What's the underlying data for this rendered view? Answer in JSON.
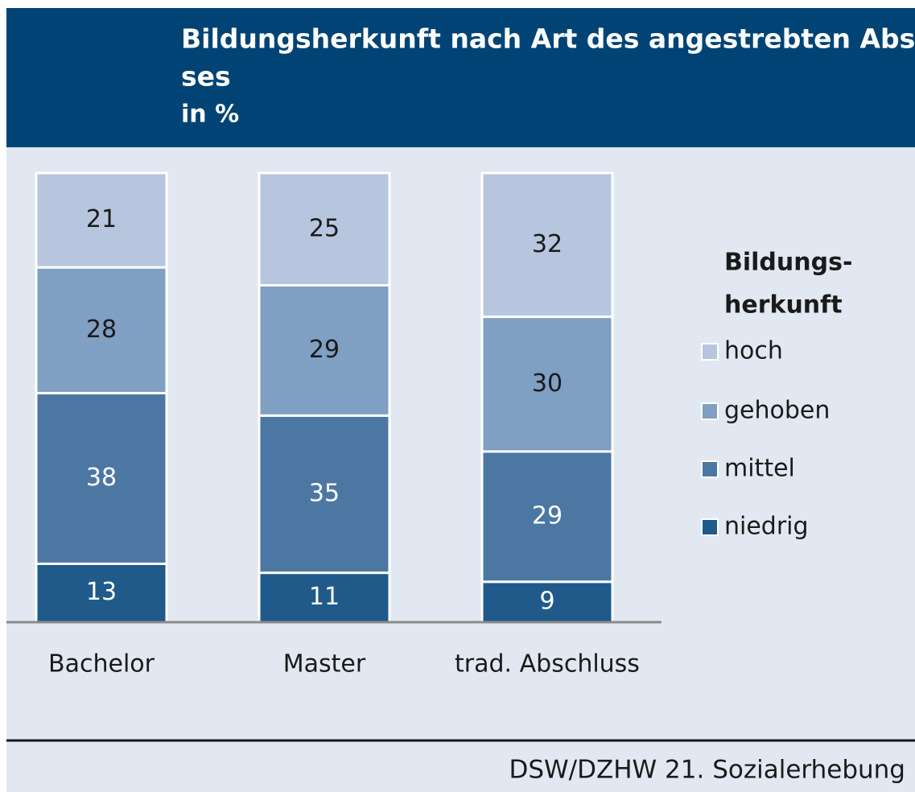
{
  "chart_data": {
    "type": "stacked_bar",
    "title": [
      "Bildungsherkunft nach Art des angestrebten Abschlus-",
      "ses"
    ],
    "subtitle": "in %",
    "categories": [
      "Bachelor",
      "Master",
      "trad. Abschluss"
    ],
    "legend_title": [
      "Bildungs-",
      "herkunft"
    ],
    "series": [
      {
        "name": "niedrig",
        "color": "#1f5a8a",
        "values": [
          13,
          11,
          9
        ]
      },
      {
        "name": "mittel",
        "color": "#4d77a3",
        "values": [
          38,
          35,
          29
        ]
      },
      {
        "name": "gehoben",
        "color": "#7f9fc3",
        "values": [
          28,
          29,
          30
        ]
      },
      {
        "name": "hoch",
        "color": "#b7c6de",
        "values": [
          21,
          25,
          32
        ]
      }
    ],
    "ylim": [
      0,
      100
    ],
    "legend": "right",
    "source": "DSW/DZHW 21. Sozialerhebung"
  }
}
